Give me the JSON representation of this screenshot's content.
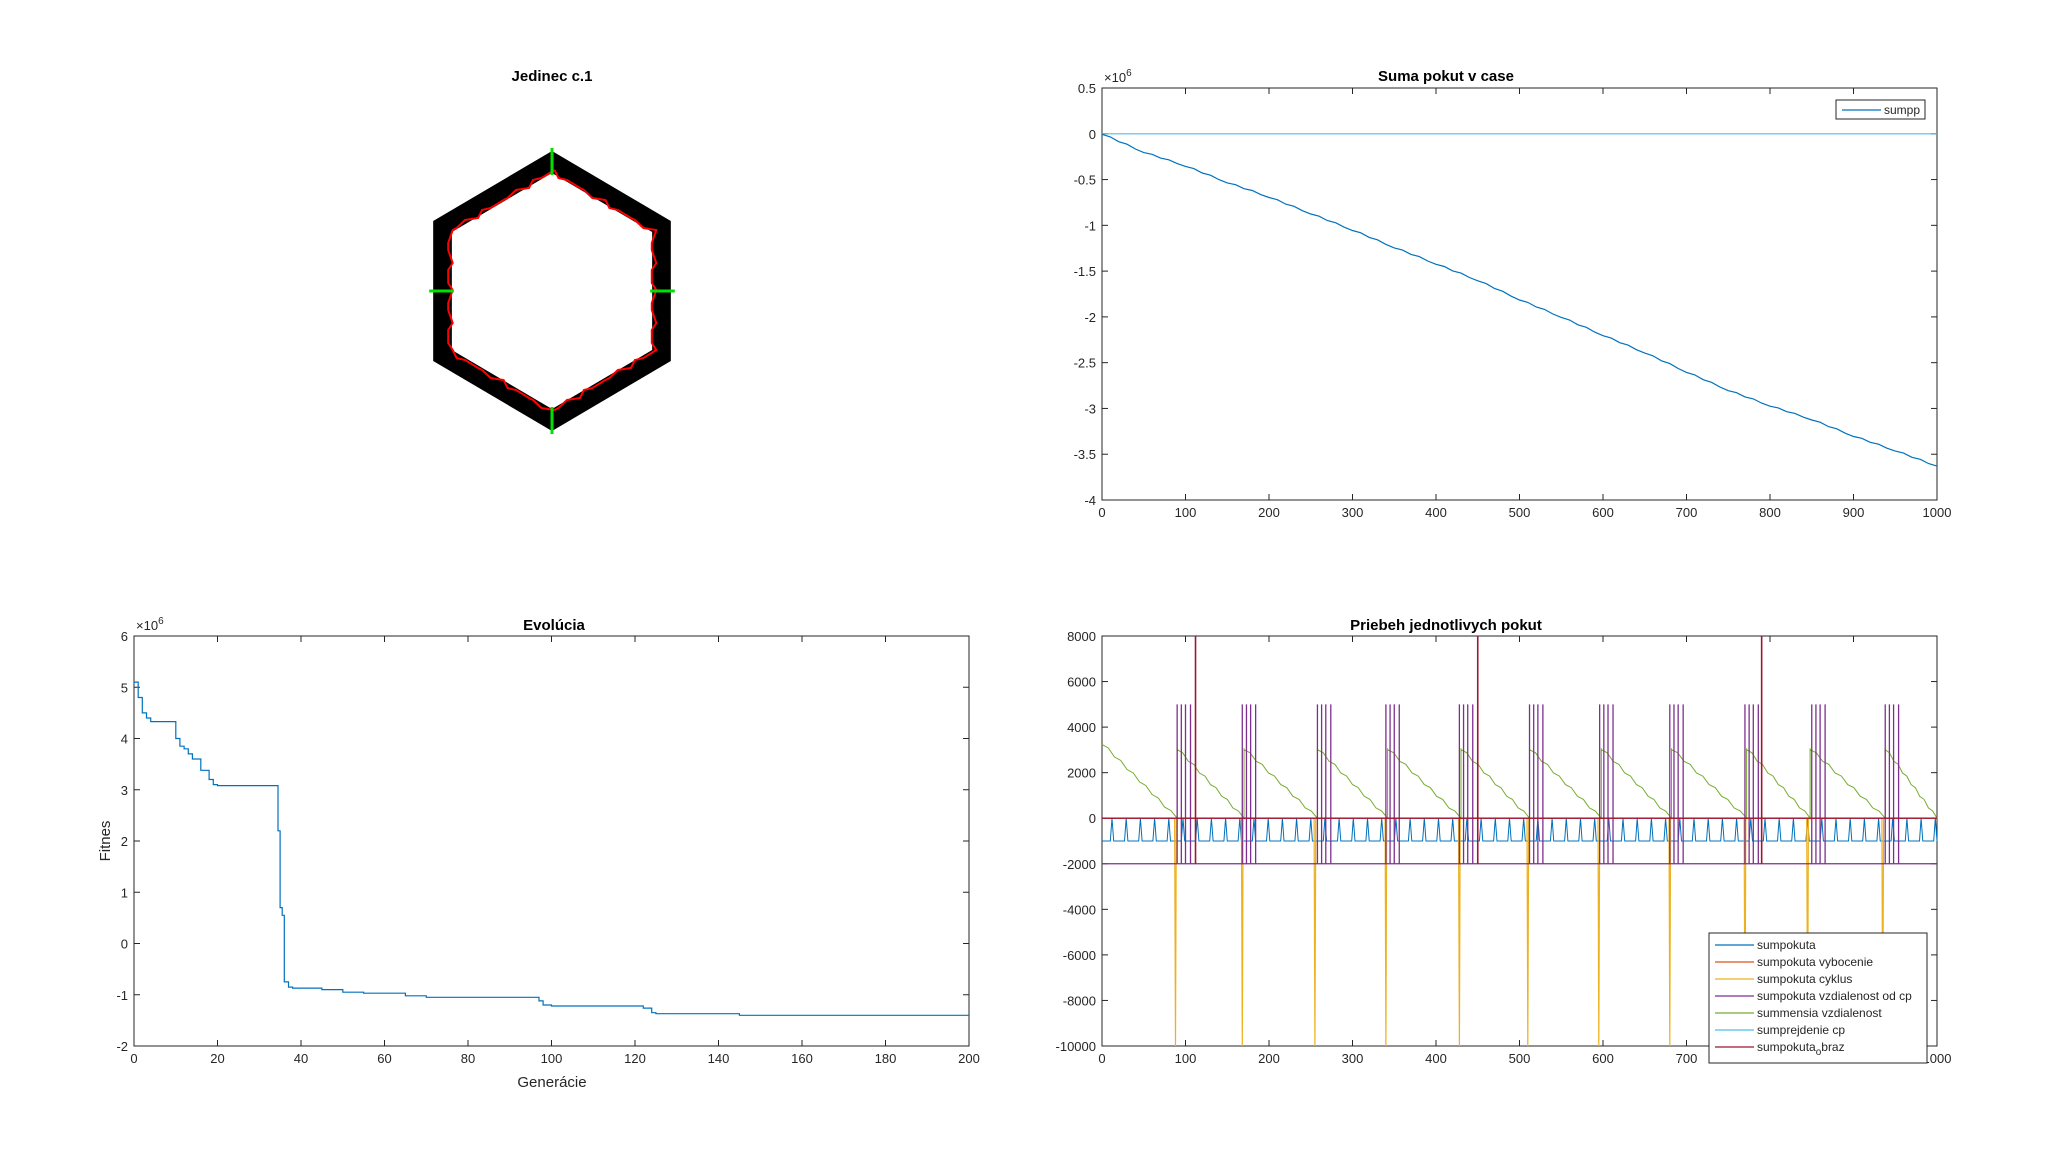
{
  "figure": {
    "panel1_title": "Jedinec c.1",
    "panel2_title": "Suma pokut v case",
    "panel3_title": "Evolúcia",
    "panel4_title": "Priebeh jednotlivych pokut",
    "exp_label": "×10",
    "exp_value": "6",
    "sub_o": "o",
    "sub_braz": "braz"
  },
  "colors": {
    "black": "#000000",
    "red": "#ff0000",
    "green": "#00e000",
    "blue": "#0072bd",
    "orange": "#d95319",
    "yellow": "#edb120",
    "purple": "#7e2f8e",
    "olive": "#77ac30",
    "cyan": "#4dbeee",
    "crimson": "#a2142f"
  },
  "chart_data": [
    {
      "type": "image",
      "title": "Jedinec c.1",
      "description_elements": [
        "black-hexagon-ring",
        "red-path",
        "green-markers"
      ]
    },
    {
      "type": "line",
      "title": "Suma pokut v case",
      "xlabel": "",
      "ylabel": "",
      "xlim": [
        0,
        1000
      ],
      "ylim": [
        -4,
        0.5
      ],
      "y_multiplier": "×10^6",
      "x_ticks": [
        0,
        100,
        200,
        300,
        400,
        500,
        600,
        700,
        800,
        900,
        1000
      ],
      "y_ticks": [
        0.5,
        0,
        -0.5,
        -1,
        -1.5,
        -2,
        -2.5,
        -3,
        -3.5,
        -4
      ],
      "y_tick_labels": [
        "0.5",
        "0",
        "-0.5",
        "-1",
        "-1.5",
        "-2",
        "-2.5",
        "-3",
        "-3.5",
        "-4"
      ],
      "legend": [
        "sumpp"
      ],
      "legend_position": "top-right",
      "series": [
        {
          "name": "sumpp",
          "color": "#0072bd",
          "x": [
            0,
            50,
            100,
            150,
            200,
            250,
            300,
            350,
            400,
            450,
            500,
            550,
            600,
            650,
            700,
            750,
            800,
            850,
            900,
            950,
            1000
          ],
          "y": [
            0,
            -0.2,
            -0.35,
            -0.53,
            -0.69,
            -0.87,
            -1.05,
            -1.24,
            -1.42,
            -1.6,
            -1.81,
            -2.0,
            -2.2,
            -2.39,
            -2.6,
            -2.8,
            -2.97,
            -3.12,
            -3.3,
            -3.46,
            -3.63
          ]
        },
        {
          "name": "",
          "color": "#4dbeee",
          "x": [
            0,
            1000
          ],
          "y": [
            0,
            0
          ]
        }
      ]
    },
    {
      "type": "line",
      "title": "Evolúcia",
      "xlabel": "Generácie",
      "ylabel": "Fitnes",
      "xlim": [
        0,
        200
      ],
      "ylim": [
        -2,
        6
      ],
      "y_multiplier": "×10^6",
      "x_ticks": [
        0,
        20,
        40,
        60,
        80,
        100,
        120,
        140,
        160,
        180,
        200
      ],
      "y_ticks": [
        6,
        5,
        4,
        3,
        2,
        1,
        0,
        -1,
        -2
      ],
      "y_tick_labels": [
        "6",
        "5",
        "4",
        "3",
        "2",
        "1",
        "0",
        "-1",
        "-2"
      ],
      "series": [
        {
          "name": "",
          "color": "#0072bd",
          "x": [
            0,
            1,
            1,
            2,
            2,
            3,
            3,
            4,
            4,
            10,
            10,
            11,
            12,
            13,
            14,
            15,
            16,
            17,
            18,
            19,
            20,
            34,
            34.5,
            35,
            35.5,
            36,
            37,
            38,
            45,
            50,
            55,
            65,
            70,
            97,
            98,
            100,
            122,
            124,
            125,
            145,
            200
          ],
          "y": [
            5.1,
            5.1,
            4.8,
            4.8,
            4.5,
            4.5,
            4.4,
            4.4,
            4.33,
            4.33,
            4.0,
            3.85,
            3.8,
            3.7,
            3.6,
            3.6,
            3.38,
            3.38,
            3.2,
            3.1,
            3.08,
            3.08,
            2.2,
            0.7,
            0.55,
            -0.75,
            -0.85,
            -0.87,
            -0.9,
            -0.95,
            -0.97,
            -1.02,
            -1.05,
            -1.12,
            -1.2,
            -1.22,
            -1.26,
            -1.35,
            -1.37,
            -1.4,
            -1.4
          ]
        }
      ]
    },
    {
      "type": "line",
      "title": "Priebeh jednotlivych pokut",
      "xlim": [
        0,
        1000
      ],
      "ylim": [
        -10000,
        8000
      ],
      "x_ticks": [
        0,
        100,
        200,
        300,
        400,
        500,
        600,
        700,
        800,
        900,
        1000
      ],
      "y_ticks": [
        8000,
        6000,
        4000,
        2000,
        0,
        -2000,
        -4000,
        -6000,
        -8000,
        -10000
      ],
      "y_tick_labels": [
        "8000",
        "6000",
        "4000",
        "2000",
        "0",
        "-2000",
        "-4000",
        "-6000",
        "-8000",
        "-10000"
      ],
      "legend": [
        "sumpokuta",
        "sumpokuta vybocenie",
        "sumpokuta cyklus",
        "sumpokuta vzdialenost od cp",
        "summensia vzdialenost",
        "sumprejdenie cp",
        "sumpokuta_obraz"
      ],
      "legend_position": "bottom-right",
      "series": [
        {
          "name": "sumpokuta",
          "color": "#0072bd",
          "baseline": -1000,
          "spike_to": 0
        },
        {
          "name": "sumpokuta vybocenie",
          "color": "#d95319",
          "baseline": 0
        },
        {
          "name": "sumpokuta cyklus",
          "color": "#edb120",
          "baseline": 0,
          "dips": [
            88,
            168,
            255,
            340,
            428,
            510,
            595,
            680,
            770,
            845,
            935
          ],
          "dip_to": -10000
        },
        {
          "name": "sumpokuta vzdialenost od cp",
          "color": "#7e2f8e",
          "baseline": -2000,
          "spike_to": 5000
        },
        {
          "name": "summensia vzdialenost",
          "color": "#77ac30",
          "sawtooth_resets": [
            0,
            90,
            170,
            258,
            342,
            430,
            512,
            598,
            682,
            772,
            848,
            938
          ],
          "peak": 3300
        },
        {
          "name": "sumprejdenie cp",
          "color": "#4dbeee",
          "baseline": 0
        },
        {
          "name": "sumpokuta_obraz",
          "color": "#a2142f",
          "baseline": 0,
          "spikes_at": [
            112,
            450,
            790
          ],
          "spike_to": 8000
        }
      ]
    }
  ]
}
